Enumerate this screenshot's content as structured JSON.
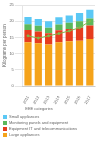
{
  "chart_data": {
    "type": "bar",
    "stacked": true,
    "categories": [
      "2011",
      "2012",
      "2013",
      "2014",
      "2015",
      "2016",
      "2017"
    ],
    "series": [
      {
        "name": "Large appliances",
        "color": "#f5a31a",
        "values": [
          13.5,
          13.2,
          12.8,
          13.5,
          13.8,
          14.0,
          14.5
        ]
      },
      {
        "name": "Equipment IT and telecommunications",
        "color": "#e63c1e",
        "values": [
          3.8,
          3.6,
          3.5,
          3.7,
          3.8,
          4.0,
          4.2
        ]
      },
      {
        "name": "Monitoring panels and equipment",
        "color": "#5cb85c",
        "values": [
          1.8,
          1.8,
          1.7,
          1.8,
          1.9,
          2.0,
          2.1
        ]
      },
      {
        "name": "Small appliances",
        "color": "#5bc8f5",
        "values": [
          2.2,
          2.1,
          2.0,
          2.2,
          2.3,
          2.5,
          2.7
        ]
      },
      {
        "type": "line",
        "marker": "circle",
        "color": "#82b74b",
        "values": [
          15.5,
          14.8,
          15.5,
          16.2,
          17.0,
          18.0,
          20.0
        ]
      }
    ],
    "ylabel": "Kilograms per person",
    "ylim": [
      0,
      25
    ],
    "yticks": [
      0,
      5,
      10,
      15,
      20,
      25
    ],
    "grid": "y",
    "legend": "bottom",
    "legend_title": "EEE categories"
  }
}
